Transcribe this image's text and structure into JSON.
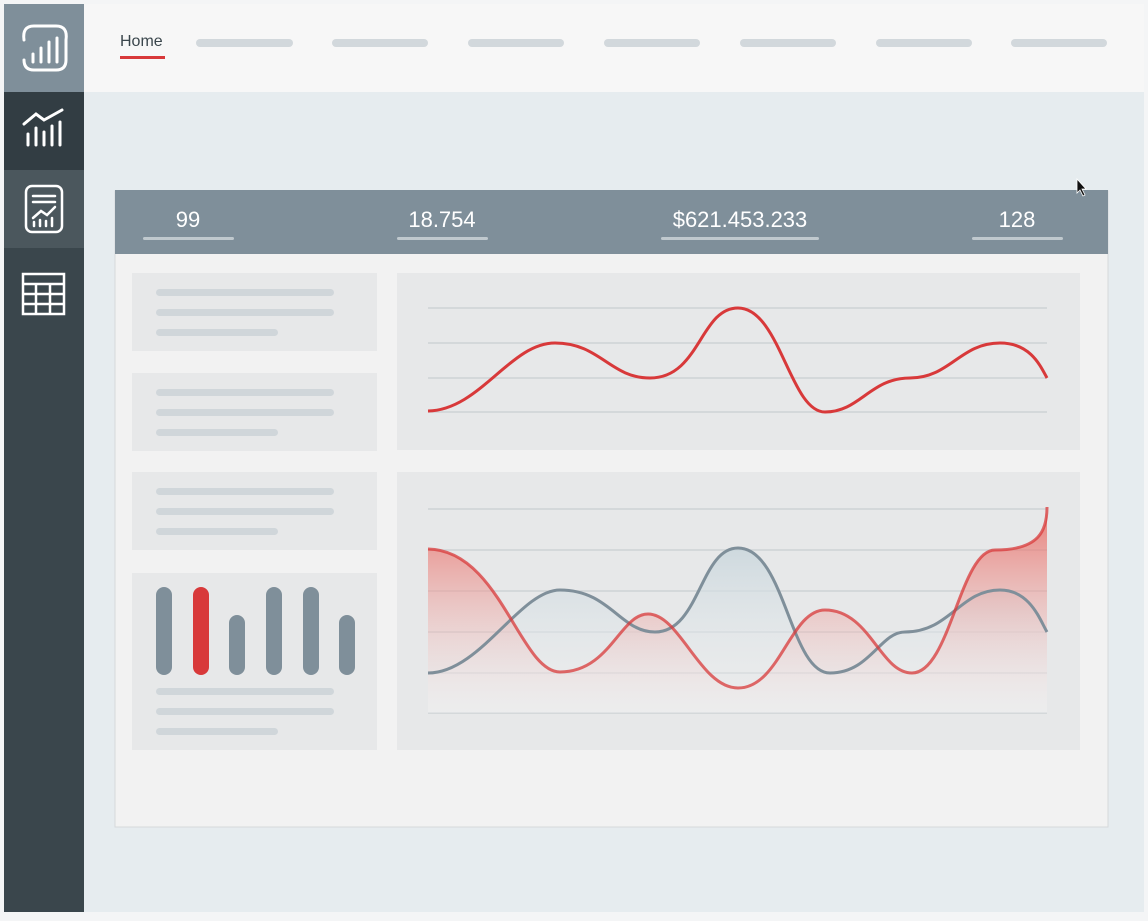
{
  "nav": {
    "home": "Home"
  },
  "stats": [
    "99",
    "18.754",
    "$621.453.233",
    "128"
  ]
}
